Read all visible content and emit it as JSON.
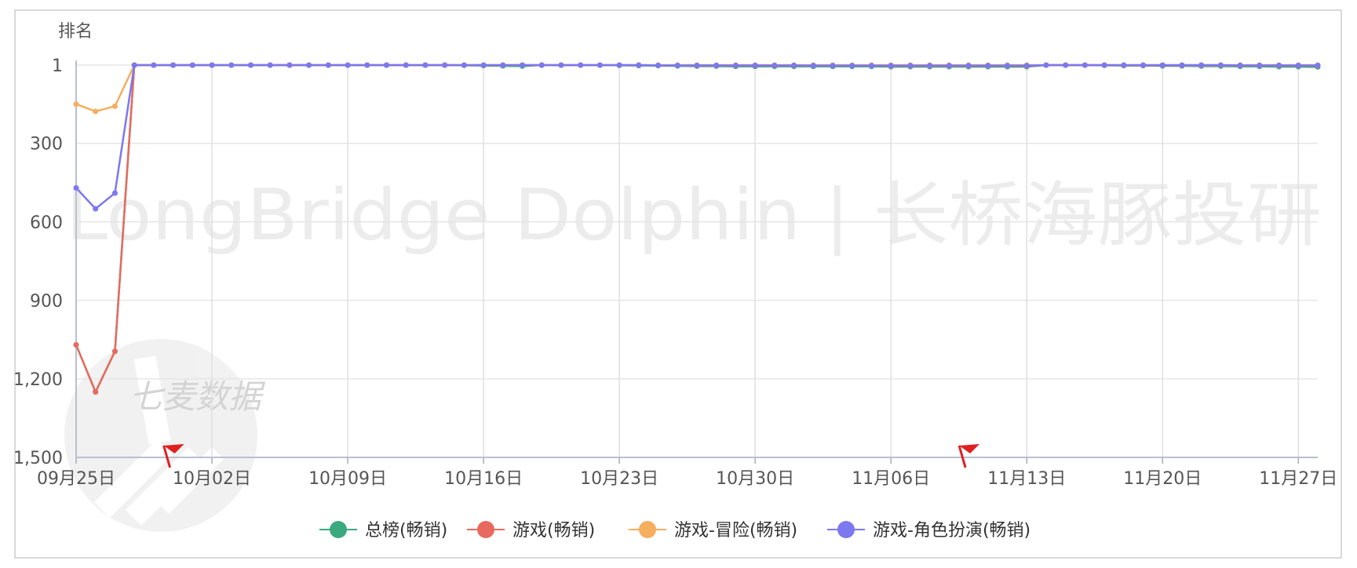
{
  "chart_data": {
    "type": "line",
    "ylabel": "排名",
    "y_inverted": true,
    "ylim": [
      1,
      1500
    ],
    "y_ticks": [
      "1",
      "300",
      "600",
      "900",
      "1,200",
      "1,500"
    ],
    "y_tick_values": [
      1,
      300,
      600,
      900,
      1200,
      1500
    ],
    "x_start": "2023-09-25",
    "x_end": "2023-11-28",
    "x_ticks": [
      "09月25日",
      "10月02日",
      "10月09日",
      "10月16日",
      "10月23日",
      "10月30日",
      "11月06日",
      "11月13日",
      "11月20日",
      "11月27日"
    ],
    "grid": true,
    "legend": "bottom",
    "flags": [
      "2023-09-30",
      "2023-11-10"
    ],
    "series": [
      {
        "name": "总榜(畅销)",
        "color": "#3aa97f",
        "values": [
          1070,
          1250,
          1095,
          1,
          1,
          1,
          1,
          1,
          1,
          1,
          1,
          1,
          1,
          1,
          1,
          1,
          1,
          1,
          1,
          1,
          2,
          3,
          4,
          5,
          1,
          1,
          1,
          1,
          2,
          3,
          3,
          4,
          5,
          5,
          6,
          6,
          6,
          6,
          6,
          6,
          6,
          6,
          7,
          7,
          7,
          7,
          7,
          7,
          7,
          7,
          1,
          1,
          1,
          2,
          3,
          3,
          4,
          4,
          5,
          5,
          6,
          6,
          7,
          7,
          8,
          8,
          9,
          9,
          10,
          10,
          11,
          12,
          13,
          15,
          16,
          17,
          18,
          19,
          20,
          21,
          22,
          23,
          24,
          25,
          26,
          27,
          28,
          29,
          30,
          31,
          32,
          33,
          34,
          35,
          36,
          37,
          38,
          39,
          40,
          41,
          42,
          43,
          44,
          45,
          46,
          47,
          48,
          49,
          50,
          52,
          54,
          56,
          58,
          60,
          62,
          64,
          66,
          68,
          70,
          72,
          74,
          76,
          78,
          80,
          82,
          84,
          86,
          88,
          90,
          92,
          94,
          96,
          98,
          100,
          102,
          104,
          106,
          108,
          110,
          112,
          114,
          116,
          118,
          120,
          122,
          124,
          126,
          128,
          130
        ]
      },
      {
        "name": "游戏(畅销)",
        "color": "#e86a5f",
        "values": [
          1070,
          1250,
          1095,
          1,
          1,
          1,
          1,
          1,
          1,
          1,
          1,
          1,
          1,
          1,
          1,
          1,
          1,
          1,
          1,
          1,
          1,
          1,
          1,
          1,
          1,
          1,
          1,
          1,
          1,
          1,
          2,
          2,
          3,
          3,
          3,
          3,
          3,
          3,
          3,
          3,
          3,
          3,
          4,
          4,
          4,
          4,
          4,
          4,
          4,
          4,
          1,
          1,
          1,
          1,
          2,
          2,
          2,
          2,
          2,
          2,
          3,
          3,
          3,
          3,
          3,
          3,
          3,
          3,
          4,
          4,
          4,
          4,
          5,
          5,
          5,
          5,
          5,
          5,
          5,
          5,
          5,
          5,
          5,
          5,
          5,
          5,
          5,
          5,
          5,
          5,
          5,
          5,
          5,
          5,
          5,
          5,
          5,
          5,
          5,
          5,
          5,
          5,
          5,
          5,
          5,
          5,
          5,
          5,
          5,
          5,
          5,
          5,
          5,
          5,
          5,
          5,
          5,
          5,
          5,
          5,
          5,
          5,
          5,
          5,
          5,
          5,
          5,
          5,
          5,
          5,
          5,
          5,
          5,
          5,
          5,
          5,
          5,
          5,
          5,
          5,
          5,
          5,
          5,
          5,
          5,
          5,
          5,
          5,
          5,
          5,
          5,
          5,
          5,
          5
        ]
      },
      {
        "name": "游戏-冒险(畅销)",
        "color": "#f5ad5e",
        "values": [
          150,
          178,
          158,
          1,
          1,
          1,
          1,
          1,
          1,
          1,
          1,
          1,
          1,
          1,
          1,
          1,
          1,
          1,
          1,
          1,
          1,
          1,
          1,
          1,
          1,
          1,
          1,
          1,
          1,
          1,
          1,
          1,
          1,
          1,
          1,
          1,
          1,
          1,
          1,
          1,
          1,
          1,
          1,
          1,
          1,
          1,
          1,
          1,
          1,
          1,
          1,
          1,
          1,
          1,
          1,
          1,
          1,
          1,
          1,
          1,
          1,
          1,
          1,
          1,
          1,
          1,
          1,
          1,
          1,
          1,
          1,
          1,
          1,
          1,
          1,
          1,
          1,
          1,
          1,
          1,
          1,
          1,
          1,
          1,
          1,
          1,
          1,
          1,
          1,
          1,
          1,
          1,
          1,
          1,
          1,
          1,
          1,
          1,
          1,
          1,
          1,
          1,
          1,
          1,
          1,
          1,
          1,
          1,
          1,
          1,
          1,
          1,
          1,
          1,
          1,
          1,
          1,
          1,
          1,
          1,
          1,
          1,
          1,
          1,
          1,
          1,
          1,
          1,
          1,
          1,
          1,
          1,
          1,
          1,
          1,
          1,
          1,
          1,
          1,
          1,
          1,
          1,
          1,
          1,
          1,
          1,
          1,
          1,
          1,
          1,
          1,
          1,
          1,
          1,
          1,
          1
        ]
      },
      {
        "name": "游戏-角色扮演(畅销)",
        "color": "#7b78f0",
        "values": [
          470,
          550,
          490,
          1,
          1,
          1,
          1,
          1,
          1,
          1,
          1,
          1,
          1,
          1,
          1,
          1,
          1,
          1,
          1,
          1,
          1,
          1,
          1,
          1,
          1,
          1,
          1,
          1,
          1,
          1,
          2,
          2,
          2,
          2,
          2,
          2,
          2,
          2,
          3,
          3,
          3,
          3,
          3,
          3,
          3,
          3,
          3,
          3,
          3,
          3,
          1,
          1,
          1,
          1,
          1,
          1,
          1,
          1,
          1,
          1,
          2,
          2,
          2,
          2,
          2,
          2,
          2,
          2,
          2,
          2,
          3,
          3,
          3,
          3,
          3,
          3,
          3,
          3,
          3,
          3,
          3,
          3,
          3,
          3,
          3,
          3,
          3,
          3,
          3,
          3,
          3,
          3,
          3,
          3,
          3,
          3,
          3,
          3,
          3,
          3,
          3,
          3,
          3,
          3,
          3,
          3,
          3,
          3,
          3,
          3,
          3,
          3,
          3,
          3,
          3,
          3,
          3,
          3,
          3,
          3,
          3,
          3,
          3,
          3,
          3,
          3,
          3,
          3,
          3,
          3,
          3,
          3,
          3,
          3,
          3,
          3,
          3,
          3,
          3,
          3,
          3,
          3,
          3,
          3,
          3,
          3,
          3,
          3,
          3,
          3,
          3,
          3,
          3,
          3,
          3,
          3,
          3,
          3,
          3
        ]
      }
    ],
    "watermarks": [
      "LongBridge Dolphin | 长桥海豚投研",
      "七麦数据"
    ]
  }
}
